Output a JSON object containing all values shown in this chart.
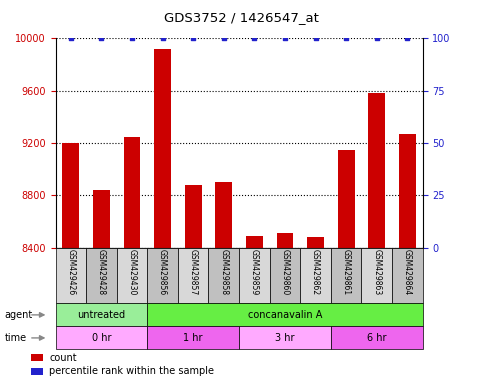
{
  "title": "GDS3752 / 1426547_at",
  "samples": [
    "GSM429426",
    "GSM429428",
    "GSM429430",
    "GSM429856",
    "GSM429857",
    "GSM429858",
    "GSM429859",
    "GSM429860",
    "GSM429862",
    "GSM429861",
    "GSM429863",
    "GSM429864"
  ],
  "counts": [
    9200,
    8840,
    9250,
    9920,
    8880,
    8900,
    8490,
    8510,
    8480,
    9150,
    9580,
    9270
  ],
  "percentile": [
    100,
    100,
    100,
    100,
    100,
    100,
    100,
    100,
    100,
    100,
    100,
    100
  ],
  "ylim_left": [
    8400,
    10000
  ],
  "yticks_left": [
    8400,
    8800,
    9200,
    9600,
    10000
  ],
  "ylim_right": [
    0,
    100
  ],
  "yticks_right": [
    0,
    25,
    50,
    75,
    100
  ],
  "bar_color": "#cc0000",
  "dot_color": "#2222cc",
  "agent_groups": [
    {
      "label": "untreated",
      "start": 0,
      "end": 3,
      "color": "#99ee99"
    },
    {
      "label": "concanavalin A",
      "start": 3,
      "end": 12,
      "color": "#66ee44"
    }
  ],
  "time_colors_alt": [
    "#ffaaff",
    "#ee66ee"
  ],
  "time_groups": [
    {
      "label": "0 hr",
      "start": 0,
      "end": 3,
      "color_idx": 0
    },
    {
      "label": "1 hr",
      "start": 3,
      "end": 6,
      "color_idx": 1
    },
    {
      "label": "3 hr",
      "start": 6,
      "end": 9,
      "color_idx": 0
    },
    {
      "label": "6 hr",
      "start": 9,
      "end": 12,
      "color_idx": 1
    }
  ],
  "legend_items": [
    {
      "color": "#cc0000",
      "label": "count"
    },
    {
      "color": "#2222cc",
      "label": "percentile rank within the sample"
    }
  ],
  "agent_label": "agent",
  "time_label": "time",
  "bar_width": 0.55,
  "background_color": "#ffffff",
  "tick_label_color_left": "#cc0000",
  "tick_label_color_right": "#2222cc",
  "label_bg_even": "#d8d8d8",
  "label_bg_odd": "#c0c0c0"
}
